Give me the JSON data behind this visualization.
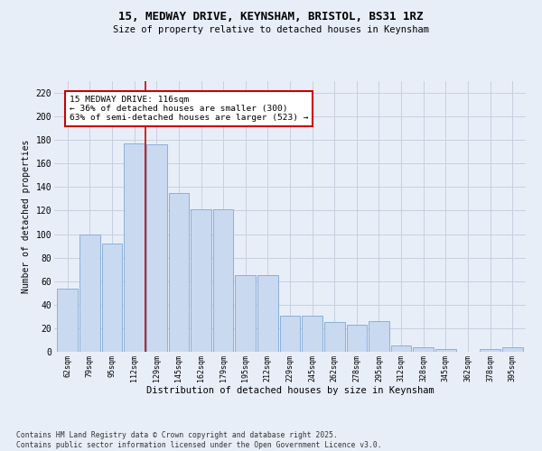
{
  "title_line1": "15, MEDWAY DRIVE, KEYNSHAM, BRISTOL, BS31 1RZ",
  "title_line2": "Size of property relative to detached houses in Keynsham",
  "xlabel": "Distribution of detached houses by size in Keynsham",
  "ylabel": "Number of detached properties",
  "categories": [
    "62sqm",
    "79sqm",
    "95sqm",
    "112sqm",
    "129sqm",
    "145sqm",
    "162sqm",
    "179sqm",
    "195sqm",
    "212sqm",
    "229sqm",
    "245sqm",
    "262sqm",
    "278sqm",
    "295sqm",
    "312sqm",
    "328sqm",
    "345sqm",
    "362sqm",
    "378sqm",
    "395sqm"
  ],
  "values": [
    54,
    100,
    92,
    177,
    176,
    135,
    121,
    121,
    65,
    65,
    31,
    31,
    25,
    23,
    26,
    5,
    4,
    2,
    0,
    2,
    4
  ],
  "bar_color": "#c9d9f0",
  "bar_edge_color": "#8ab0d8",
  "vline_x_index": 3.5,
  "vline_color": "#cc0000",
  "annotation_text": "15 MEDWAY DRIVE: 116sqm\n← 36% of detached houses are smaller (300)\n63% of semi-detached houses are larger (523) →",
  "annotation_box_color": "#ffffff",
  "annotation_box_edge": "#cc0000",
  "ylim": [
    0,
    230
  ],
  "yticks": [
    0,
    20,
    40,
    60,
    80,
    100,
    120,
    140,
    160,
    180,
    200,
    220
  ],
  "grid_color": "#c8d0e0",
  "bg_color": "#e8eef8",
  "footer_line1": "Contains HM Land Registry data © Crown copyright and database right 2025.",
  "footer_line2": "Contains public sector information licensed under the Open Government Licence v3.0."
}
